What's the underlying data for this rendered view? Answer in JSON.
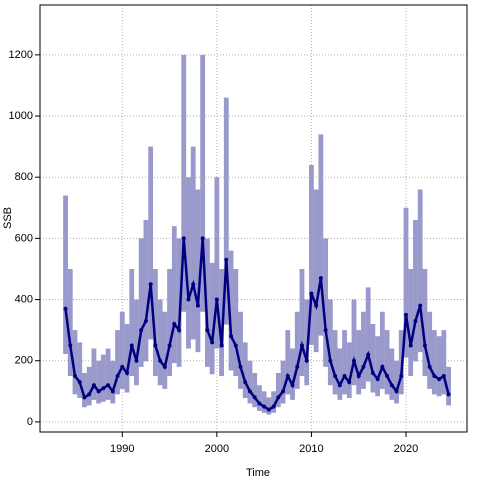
{
  "chart_data": {
    "type": "line",
    "x_label": "Time",
    "y_label": "SSB",
    "x": [
      1984,
      1984.5,
      1985,
      1985.5,
      1986,
      1986.5,
      1987,
      1987.5,
      1988,
      1988.5,
      1989,
      1989.5,
      1990,
      1990.5,
      1991,
      1991.5,
      1992,
      1992.5,
      1993,
      1993.5,
      1994,
      1994.5,
      1995,
      1995.5,
      1996,
      1996.5,
      1997,
      1997.5,
      1998,
      1998.5,
      1999,
      1999.5,
      2000,
      2000.5,
      2001,
      2001.5,
      2002,
      2002.5,
      2003,
      2003.5,
      2004,
      2004.5,
      2005,
      2005.5,
      2006,
      2006.5,
      2007,
      2007.5,
      2008,
      2008.5,
      2009,
      2009.5,
      2010,
      2010.5,
      2011,
      2011.5,
      2012,
      2012.5,
      2013,
      2013.5,
      2014,
      2014.5,
      2015,
      2015.5,
      2016,
      2016.5,
      2017,
      2017.5,
      2018,
      2018.5,
      2019,
      2019.5,
      2020,
      2020.5,
      2021,
      2021.5,
      2022,
      2022.5,
      2023,
      2023.5,
      2024,
      2024.5
    ],
    "values": [
      370,
      250,
      150,
      130,
      80,
      90,
      120,
      100,
      110,
      120,
      100,
      150,
      180,
      160,
      250,
      200,
      300,
      330,
      450,
      250,
      200,
      180,
      250,
      320,
      300,
      600,
      400,
      450,
      380,
      600,
      300,
      260,
      400,
      250,
      530,
      280,
      250,
      180,
      130,
      100,
      80,
      60,
      50,
      40,
      50,
      80,
      100,
      150,
      120,
      180,
      250,
      200,
      420,
      380,
      470,
      300,
      200,
      150,
      120,
      150,
      130,
      200,
      150,
      180,
      220,
      160,
      140,
      180,
      150,
      120,
      100,
      150,
      350,
      250,
      330,
      380,
      250,
      180,
      150,
      140,
      150,
      90
    ],
    "lower": [
      222,
      150,
      90,
      78,
      48,
      54,
      72,
      60,
      66,
      72,
      60,
      90,
      108,
      96,
      150,
      120,
      180,
      198,
      270,
      150,
      120,
      108,
      150,
      192,
      180,
      360,
      240,
      270,
      228,
      360,
      180,
      156,
      240,
      150,
      318,
      168,
      150,
      108,
      78,
      60,
      48,
      36,
      30,
      24,
      30,
      48,
      60,
      90,
      72,
      108,
      150,
      120,
      252,
      228,
      282,
      180,
      120,
      90,
      72,
      90,
      78,
      120,
      90,
      108,
      132,
      96,
      84,
      108,
      90,
      72,
      60,
      90,
      210,
      150,
      198,
      228,
      150,
      108,
      90,
      84,
      90,
      54
    ],
    "upper": [
      740,
      500,
      300,
      260,
      160,
      180,
      240,
      200,
      220,
      240,
      200,
      300,
      360,
      320,
      500,
      400,
      600,
      660,
      900,
      500,
      400,
      360,
      500,
      640,
      600,
      1200,
      800,
      900,
      760,
      1200,
      600,
      520,
      800,
      500,
      1060,
      560,
      500,
      360,
      260,
      200,
      160,
      120,
      100,
      80,
      100,
      160,
      200,
      300,
      240,
      360,
      500,
      400,
      840,
      760,
      940,
      600,
      400,
      300,
      240,
      300,
      260,
      400,
      300,
      360,
      440,
      320,
      280,
      360,
      300,
      240,
      200,
      300,
      700,
      500,
      660,
      760,
      500,
      360,
      300,
      280,
      300,
      180
    ],
    "color": "#000080",
    "band_color": "#9999cc",
    "xlim": [
      1981.3,
      2026.45
    ],
    "ylim": [
      -33,
      1363
    ],
    "xticks": [
      1990,
      2000,
      2010,
      2020
    ],
    "yticks": [
      0,
      200,
      400,
      600,
      800,
      1000,
      1200
    ],
    "grid": true
  }
}
